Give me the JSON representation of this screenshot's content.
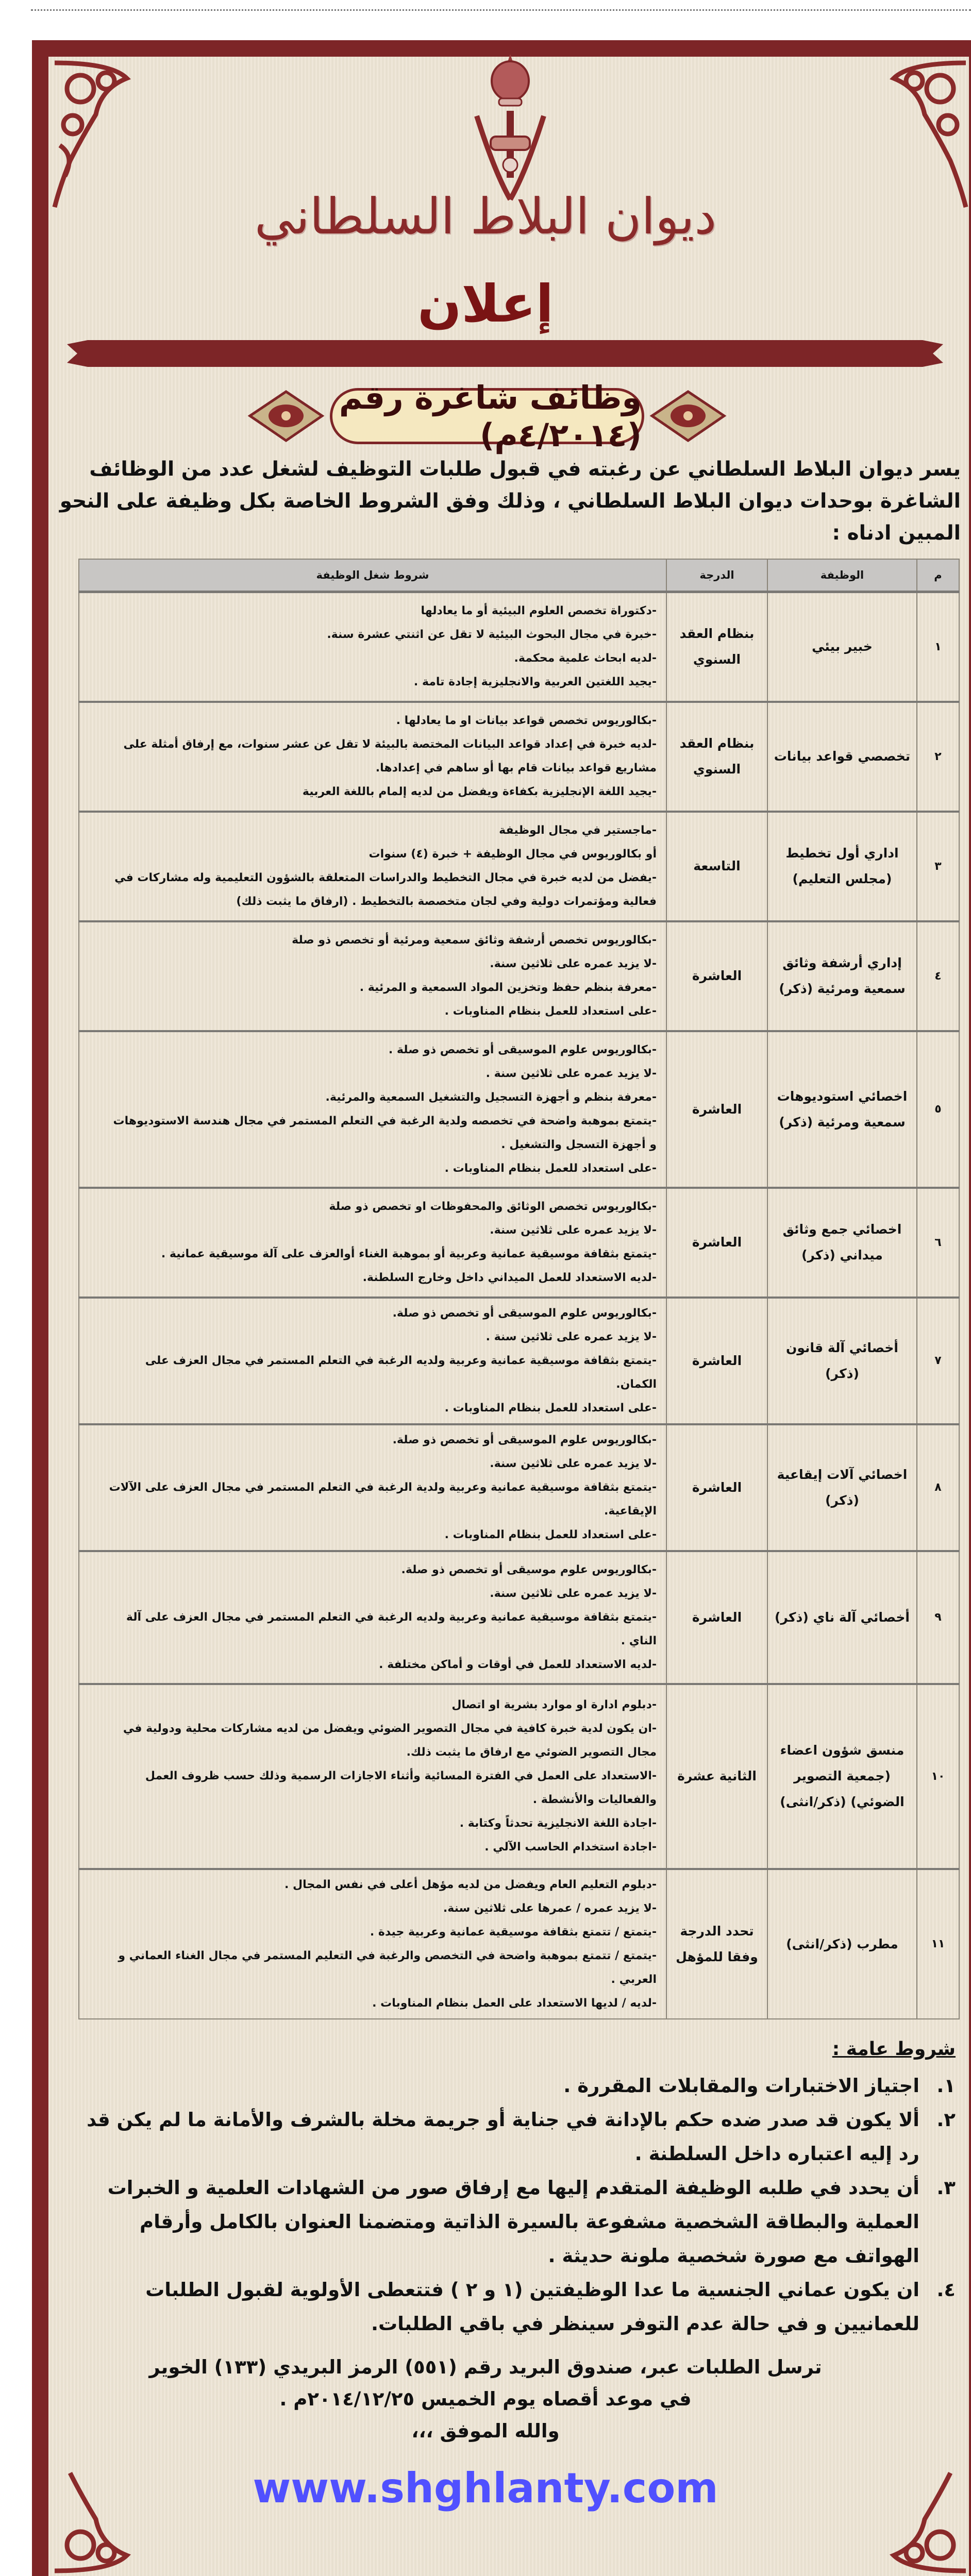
{
  "header": {
    "emblem": "oman-royal-emblem",
    "organization": "ديوان البلاط السلطاني",
    "announcement": "إعلان",
    "vacancy_title": "وظائف شاغرة رقم (٤/٢٠١٤م)",
    "intro": "يسر ديوان البلاط السلطاني عن رغبته في قبول طلبات التوظيف لشغل عدد من الوظائف الشاغرة بوحدات ديوان البلاط السلطاني ، وذلك وفق الشروط الخاصة بكل وظيفة على النحو المبين ادناه :"
  },
  "colors": {
    "frame": "#7d2527",
    "paper": "#ede4d4",
    "header_row": "#c8c6c4",
    "watermark": "#5050ff"
  },
  "table": {
    "columns": [
      "م",
      "الوظيفة",
      "الدرجة",
      "شروط شغل الوظيفة"
    ],
    "rows": [
      {
        "num": "١",
        "job": "خبير بيئي",
        "grade": "بنظام العقد السنوي",
        "conditions": [
          "-دكتوراة تخصص العلوم البيئية أو ما يعادلها",
          "-خبرة في مجال البحوث البيئية لا تقل عن اثنتي عشرة سنة.",
          "-لديه ابحاث علمية محكمة.",
          "-يجيد اللغتين العربية والانجليزية إجادة تامة ."
        ]
      },
      {
        "num": "٢",
        "job": "تخصصي قواعد بيانات",
        "grade": "بنظام العقد السنوي",
        "conditions": [
          "-بكالوريوس تخصص قواعد بيانات او ما يعادلها .",
          "-لديه خبرة في إعداد قواعد البيانات المختصة بالبيئة لا تقل عن عشر سنوات، مع إرفاق أمثلة على مشاريع قواعد بيانات قام بها أو ساهم في إعدادها.",
          "-يجيد اللغة الإنجليزية بكفاءة ويفضل من لديه إلمام باللغة العربية"
        ]
      },
      {
        "num": "٣",
        "job": "اداري أول تخطيط (مجلس التعليم)",
        "grade": "التاسعة",
        "conditions": [
          "-ماجستير في مجال الوظيفة",
          "أو بكالوريوس في مجال الوظيفة + خبرة (٤) سنوات",
          "-يفضل من لديه خبرة في مجال التخطيط والدراسات المتعلقة بالشؤون التعليمية وله مشاركات في فعالية ومؤتمرات دولية وفي لجان متخصصة بالتخطيط . (ارفاق ما يثبت ذلك)"
        ]
      },
      {
        "num": "٤",
        "job": "إداري أرشفة وثائق سمعية ومرئية (ذكر)",
        "grade": "العاشرة",
        "conditions": [
          "-بكالوريوس تخصص أرشفة وثائق سمعية ومرئية أو تخصص ذو صلة",
          "-لا يزيد عمره على ثلاثين سنة.",
          "-معرفة بنظم حفظ وتخزين المواد السمعية و المرئية .",
          "-على استعداد للعمل بنظام المناوبات ."
        ]
      },
      {
        "num": "٥",
        "job": "اخصائي استوديوهات سمعية ومرئية (ذكر)",
        "grade": "العاشرة",
        "conditions": [
          "-بكالوريوس علوم الموسيقى أو تخصص ذو صلة .",
          "-لا يزيد عمره على ثلاثين سنة .",
          "-معرفة بنظم و أجهزة التسجيل والتشغيل السمعية والمرئية.",
          "-يتمتع بموهبة واضحة في تخصصه ولدية الرغبة في التعلم المستمر في مجال هندسة الاستوديوهات و أجهزة التسجل والتشغيل .",
          "-على استعداد للعمل بنظام المناوبات ."
        ]
      },
      {
        "num": "٦",
        "job": "اخصائي جمع وثائق ميداني (ذكر)",
        "grade": "العاشرة",
        "conditions": [
          "-بكالوريوس تخصص الوثائق والمحفوظات او تخصص ذو صلة",
          "-لا يزيد عمره على ثلاثين سنة.",
          "-يتمتع بثقافة موسيقية عمانية وعربية أو بموهبة الغناء أوالعزف على آلة موسيقية عمانية .",
          "-لديه الاستعداد للعمل الميداني داخل وخارج السلطنة."
        ]
      },
      {
        "num": "٧",
        "job": "أخصائي آلة قانون (ذكر)",
        "grade": "العاشرة",
        "conditions": [
          "-بكالوريوس علوم الموسيقى أو تخصص ذو صلة.",
          "-لا يزيد عمره على ثلاثين سنة .",
          "-يتمتع بثقافة موسيقية عمانية وعربية ولديه الرغبة في التعلم المستمر في مجال العزف على الكمان.",
          "-على استعداد للعمل بنظام المناوبات ."
        ]
      },
      {
        "num": "٨",
        "job": "اخصائي آلات إيقاعية (ذكر)",
        "grade": "العاشرة",
        "conditions": [
          "-بكالوريوس علوم الموسيقى أو تخصص ذو صلة.",
          "-لا يزيد عمره على ثلاثين سنة.",
          "-يتمتع بثقافة موسيقية عمانية وعربية ولدية الرغبة في التعلم المستمر في مجال العزف على الآلات الإيقاعية.",
          "-على استعداد للعمل بنظام المناوبات ."
        ]
      },
      {
        "num": "٩",
        "job": "أخصائي آلة ناي (ذكر)",
        "grade": "العاشرة",
        "conditions": [
          "-بكالوريوس علوم موسيقى أو تخصص ذو صلة.",
          "-لا يزيد عمره على ثلاثين سنة.",
          "-يتمتع بثقافة موسيقية عمانية وعربية ولديه الرغبة في التعلم المستمر في مجال العزف على آلة الناي .",
          "-لديه الاستعداد للعمل في أوقات و أماكن مختلفة ."
        ]
      },
      {
        "num": "١٠",
        "job": "منسق شؤون اعضاء (جمعية التصوير الضوئي) (ذكر/انثى)",
        "grade": "الثانية عشرة",
        "conditions": [
          "-دبلوم ادارة او موارد بشرية او اتصال",
          "-ان يكون لدية خبرة كافية في مجال التصوير الضوئي ويفضل من لديه مشاركات محلية ودولية في مجال التصوير الضوئي مع ارفاق ما يثبت ذلك.",
          "-الاستعداد على العمل في الفترة المسائية وأثناء الاجازات الرسمية وذلك حسب ظروف العمل والفعاليات والأنشطة .",
          "-اجادة اللغة الانجليزية تحدثاً وكتابة .",
          "-اجادة استخدام الحاسب الآلي ."
        ]
      },
      {
        "num": "١١",
        "job": "مطرب (ذكر/انثى)",
        "grade": "تحدد الدرجة وفقا للمؤهل",
        "conditions": [
          "-دبلوم التعليم العام ويفضل من لديه مؤهل أعلى في نفس المجال .",
          "-لا يزيد عمره / عمرها على ثلاثين سنة.",
          "-يتمتع / تتمتع بثقافة موسيقية عمانية وعربية جيدة .",
          "-يتمتع / تتمتع بموهبة واضحة في التخصص والرغبة في التعليم المستمر في مجال الغناء العماني و العربي .",
          "-لديه / لديها الاستعداد على العمل بنظام المناوبات ."
        ]
      }
    ]
  },
  "general": {
    "title": "شروط عامة :",
    "items": [
      {
        "num": "١.",
        "text": "اجتياز الاختبارات والمقابلات المقررة ."
      },
      {
        "num": "٢.",
        "text": "ألا يكون قد صدر ضده حكم بالإدانة في جناية أو جريمة مخلة بالشرف والأمانة ما لم يكن قد رد إليه اعتباره داخل السلطنة ."
      },
      {
        "num": "٣.",
        "text": "أن يحدد في طلبه الوظيفة المتقدم إليها مع إرفاق صور من الشهادات العلمية و الخبرات العملية والبطاقة الشخصية مشفوعة بالسيرة الذاتية ومتضمنا العنوان بالكامل وأرقام الهواتف مع صورة شخصية ملونة حديثة ."
      },
      {
        "num": "٤.",
        "text": "ان يكون عماني الجنسية ما عدا الوظيفتين (١ و ٢ ) فتتعطى الأولوية لقبول الطلبات للعمانيين و في حالة عدم التوفر سينظر في باقي الطلبات."
      }
    ]
  },
  "footer": {
    "address": "ترسل الطلبات عبر، صندوق البريد رقم (٥٥١) الرمز البريدي (١٣٣) الخوير",
    "deadline": "في موعد أقصاه يوم الخميس ٢٠١٤/١٢/٢٥م .",
    "closing": "والله الموفق ،،،"
  },
  "watermark": "www.shghlanty.com"
}
